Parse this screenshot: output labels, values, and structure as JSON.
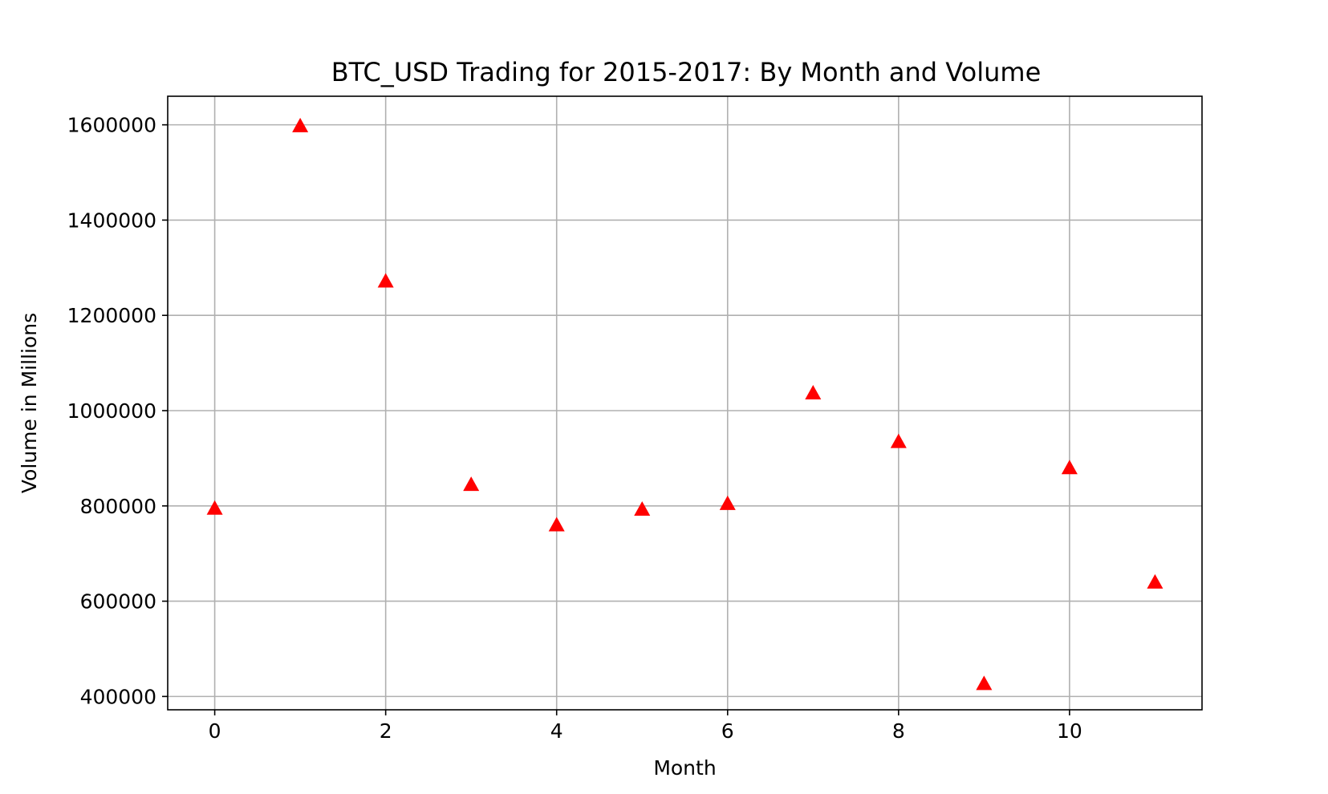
{
  "chart_data": {
    "type": "scatter",
    "title": "BTC_USD Trading for 2015-2017: By Month and Volume",
    "xlabel": "Month",
    "ylabel": "Volume in Millions",
    "xlim": [
      -0.55,
      11.55
    ],
    "ylim": [
      372000,
      1660000
    ],
    "xticks": [
      0,
      2,
      4,
      6,
      8,
      10
    ],
    "xtick_labels": [
      "0",
      "2",
      "4",
      "6",
      "8",
      "10"
    ],
    "yticks": [
      400000,
      600000,
      800000,
      1000000,
      1200000,
      1400000,
      1600000
    ],
    "ytick_labels": [
      "400000",
      "600000",
      "800000",
      "1000000",
      "1200000",
      "1400000",
      "1600000"
    ],
    "grid": true,
    "marker": "triangle",
    "marker_color": "#ff0000",
    "x": [
      0,
      1,
      2,
      3,
      4,
      5,
      6,
      7,
      8,
      9,
      10,
      11
    ],
    "y": [
      795000,
      1598000,
      1272000,
      845000,
      760000,
      793000,
      805000,
      1037000,
      935000,
      427000,
      880000,
      640000
    ]
  }
}
